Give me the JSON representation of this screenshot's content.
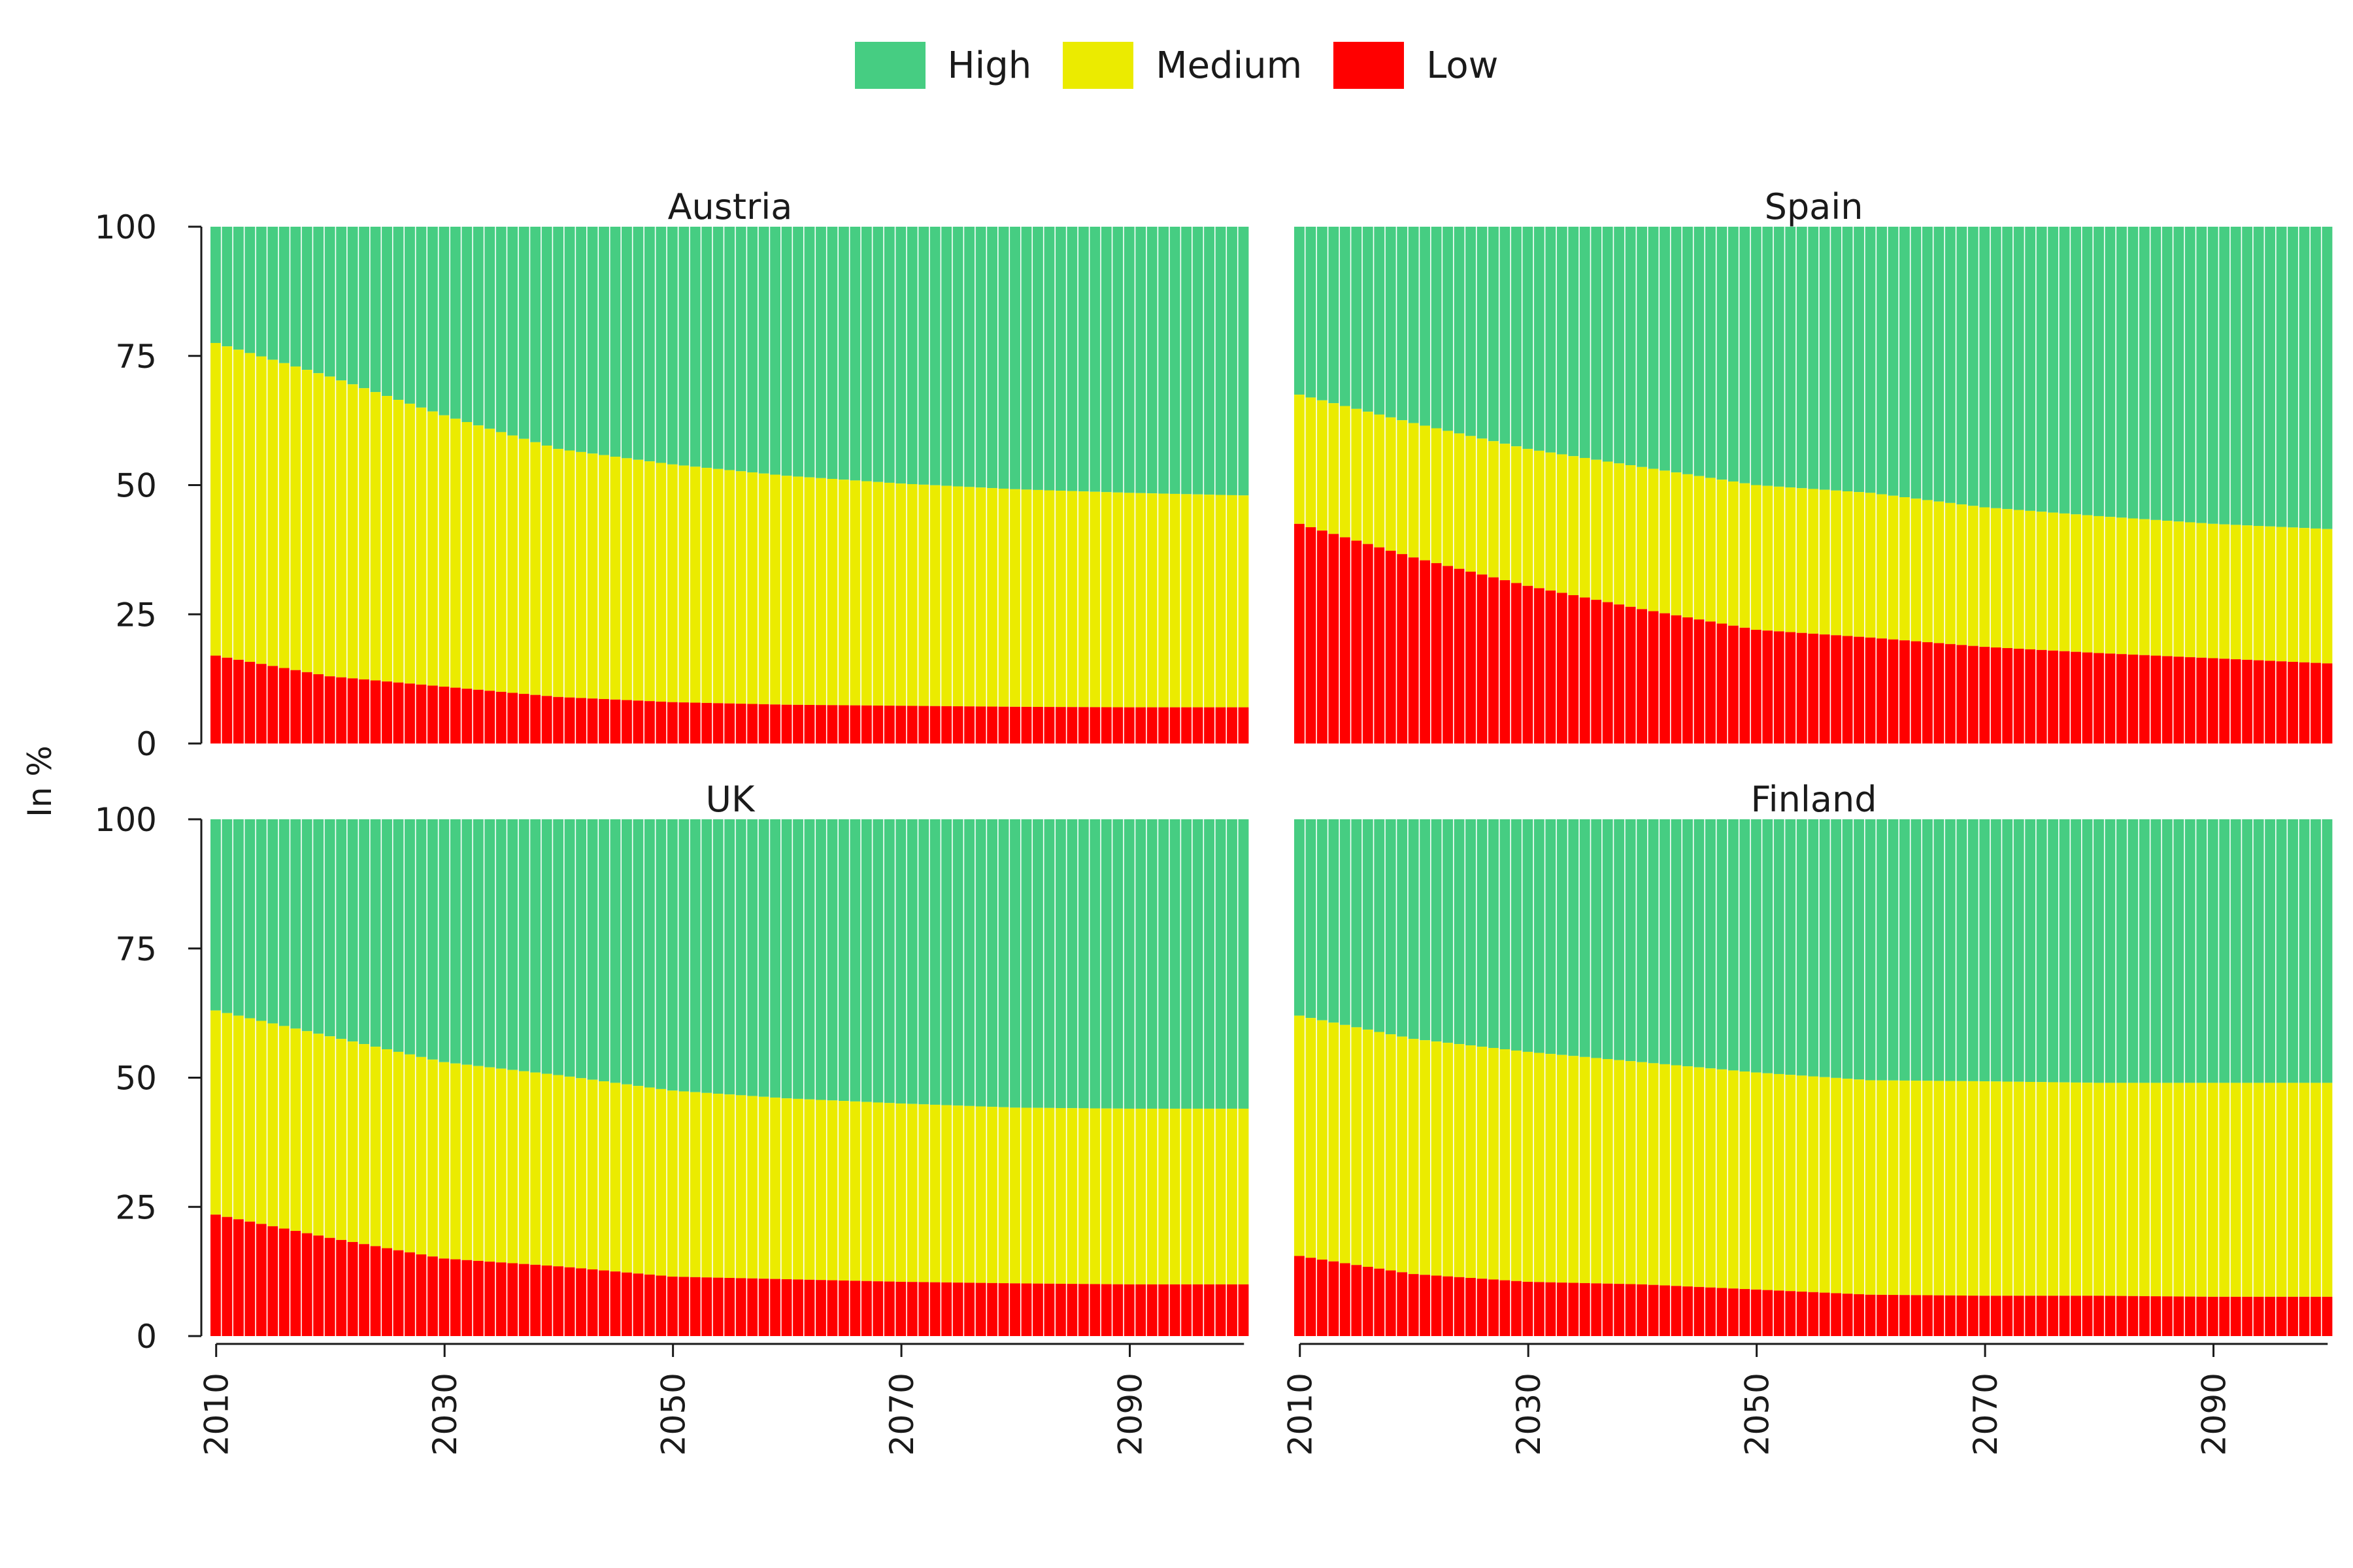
{
  "legend": [
    {
      "label": "High",
      "color": "#46CD82"
    },
    {
      "label": "Medium",
      "color": "#EBEB00"
    },
    {
      "label": "Low",
      "color": "#FF0000"
    }
  ],
  "y_axis_label": "In %",
  "chart_data": {
    "type": "bar",
    "stacked": true,
    "stack_order_bottom_to_top": [
      "Low",
      "Medium",
      "High"
    ],
    "ylabel": "In %",
    "ylim": [
      0,
      100
    ],
    "yticks": [
      0,
      25,
      50,
      75,
      100
    ],
    "xlim": [
      2010,
      2100
    ],
    "xticks": [
      2010,
      2030,
      2050,
      2070,
      2090
    ],
    "x_interpolation": "linear between listed years, one bar per year",
    "grid": false,
    "legend_position": "top",
    "colors": {
      "High": "#46CD82",
      "Medium": "#EBEB00",
      "Low": "#FF0000"
    },
    "panels": [
      {
        "title": "Austria",
        "x": [
          2010,
          2020,
          2030,
          2040,
          2050,
          2060,
          2070,
          2080,
          2090,
          2100
        ],
        "series": [
          {
            "name": "Low",
            "values": [
              17,
              13,
              11,
              9,
              8,
              7.5,
              7.3,
              7.1,
              7,
              7
            ]
          },
          {
            "name": "Medium",
            "values": [
              60.5,
              58,
              52.5,
              48,
              46,
              44.3,
              43,
              42.1,
              41.5,
              41
            ]
          }
        ]
      },
      {
        "title": "Spain",
        "x": [
          2010,
          2020,
          2030,
          2040,
          2050,
          2060,
          2070,
          2080,
          2090,
          2100
        ],
        "series": [
          {
            "name": "Low",
            "values": [
              42.5,
              36,
              30.5,
              26,
              22,
              20.5,
              18.7,
              17.5,
              16.5,
              15.5
            ]
          },
          {
            "name": "Medium",
            "values": [
              25,
              26,
              26.5,
              27.5,
              28,
              28,
              27,
              26.5,
              26,
              26
            ]
          }
        ]
      },
      {
        "title": "UK",
        "x": [
          2010,
          2020,
          2030,
          2040,
          2050,
          2060,
          2070,
          2080,
          2090,
          2100
        ],
        "series": [
          {
            "name": "Low",
            "values": [
              23.5,
              19,
              15,
              13.5,
              11.5,
              11,
              10.5,
              10.2,
              10,
              10
            ]
          },
          {
            "name": "Medium",
            "values": [
              39.5,
              39,
              38,
              37,
              36,
              35,
              34.5,
              34,
              34,
              34
            ]
          }
        ]
      },
      {
        "title": "Finland",
        "x": [
          2010,
          2020,
          2030,
          2040,
          2050,
          2060,
          2070,
          2080,
          2090,
          2100
        ],
        "series": [
          {
            "name": "Low",
            "values": [
              15.5,
              12,
              10.5,
              10,
              9,
              8,
              7.8,
              7.8,
              7.6,
              7.6
            ]
          },
          {
            "name": "Medium",
            "values": [
              46.5,
              45.5,
              44.5,
              43,
              42,
              41.5,
              41.5,
              41.2,
              41.4,
              41.4
            ]
          }
        ]
      }
    ]
  }
}
